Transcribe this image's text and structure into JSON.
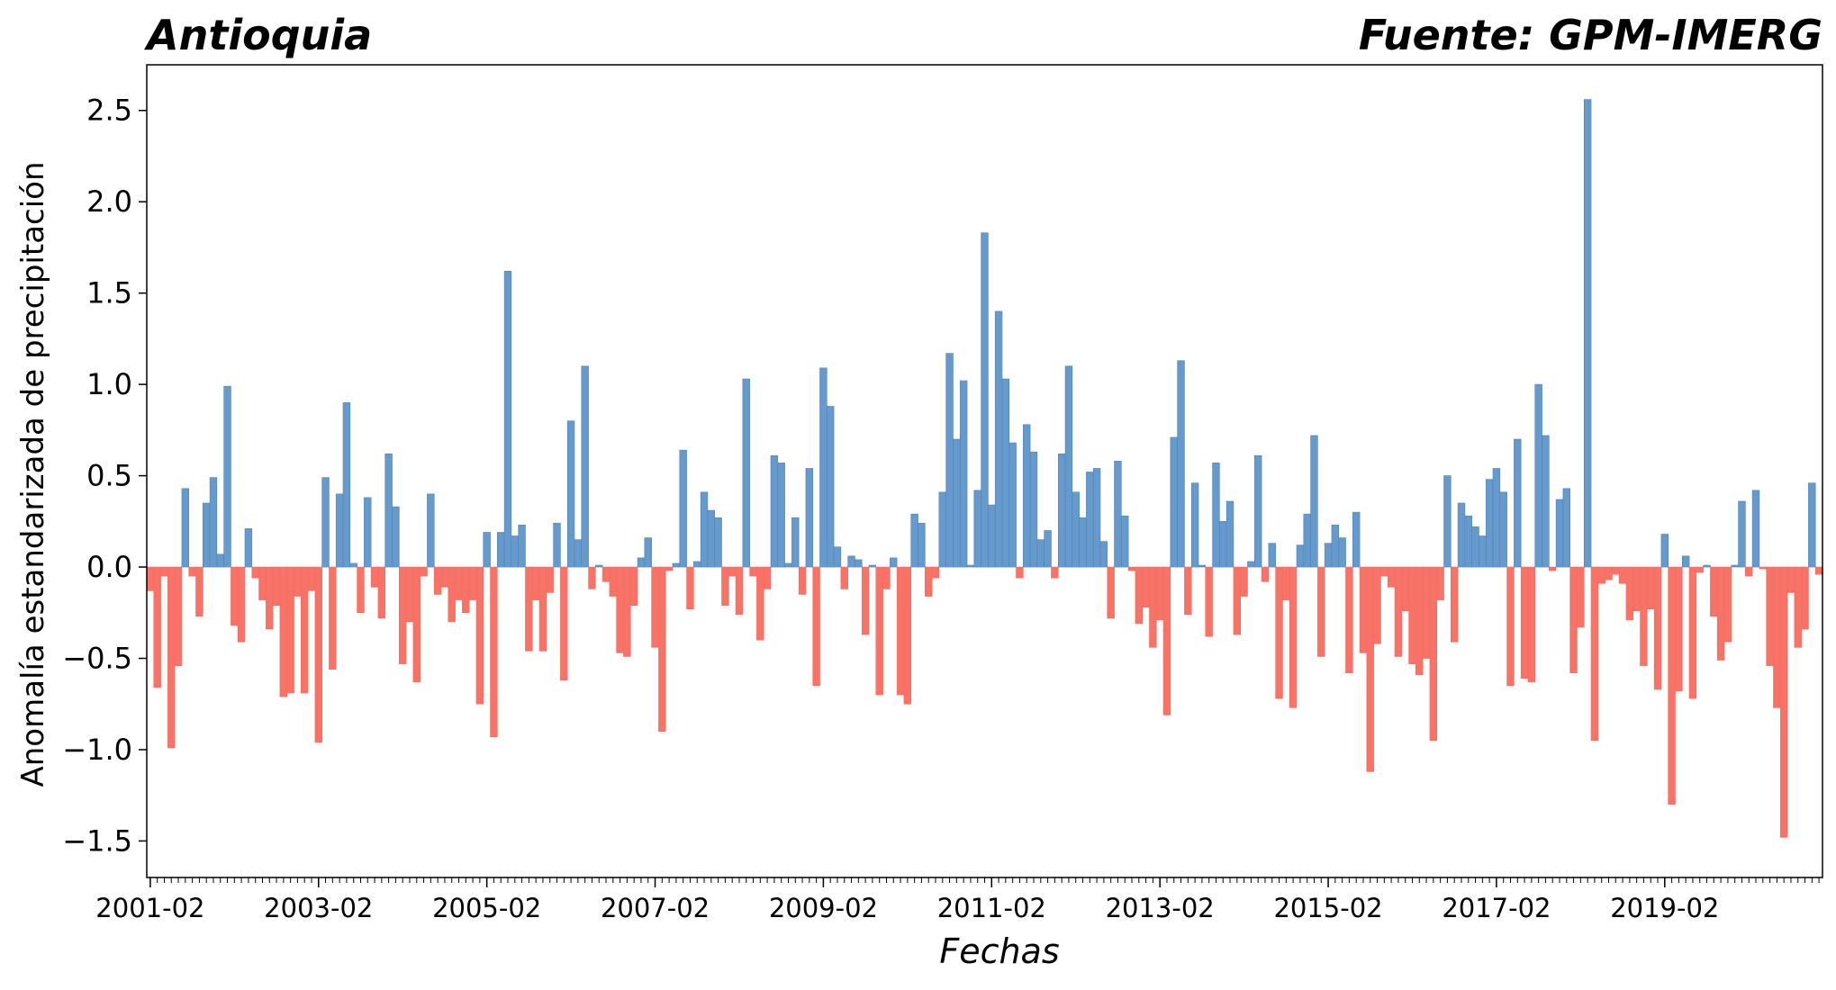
{
  "chart_data": {
    "type": "bar",
    "title_left": "Antioquia",
    "title_right": "Fuente: GPM-IMERG",
    "xlabel": "Fechas",
    "ylabel": "Anomalía estandarizada de precipitación",
    "ylim": [
      -1.7,
      2.75
    ],
    "yticks": [
      -1.5,
      -1.0,
      -0.5,
      0.0,
      0.5,
      1.0,
      1.5,
      2.0,
      2.5
    ],
    "ytick_labels": [
      "−1.5",
      "−1.0",
      "−0.5",
      "0.0",
      "0.5",
      "1.0",
      "1.5",
      "2.0",
      "2.5"
    ],
    "xtick_labels": [
      "2001-02",
      "2003-02",
      "2005-02",
      "2007-02",
      "2009-02",
      "2011-02",
      "2013-02",
      "2015-02",
      "2017-02",
      "2019-02"
    ],
    "start": "2001-02",
    "end": "2020-12",
    "colors": {
      "positive": "#6699cc",
      "negative": "#f77367"
    },
    "grid": false,
    "values": [
      -0.13,
      -0.66,
      -0.05,
      -0.99,
      -0.54,
      0.43,
      -0.05,
      -0.27,
      0.35,
      0.49,
      0.07,
      0.99,
      -0.32,
      -0.41,
      0.21,
      -0.06,
      -0.18,
      -0.34,
      -0.21,
      -0.71,
      -0.69,
      -0.16,
      -0.69,
      -0.13,
      -0.96,
      0.49,
      -0.56,
      0.4,
      0.9,
      0.02,
      -0.25,
      0.38,
      -0.11,
      -0.28,
      0.62,
      0.33,
      -0.53,
      -0.3,
      -0.63,
      -0.05,
      0.4,
      -0.15,
      -0.11,
      -0.3,
      -0.18,
      -0.25,
      -0.18,
      -0.75,
      0.19,
      -0.93,
      0.19,
      1.62,
      0.17,
      0.23,
      -0.46,
      -0.18,
      -0.46,
      -0.14,
      0.24,
      -0.62,
      0.8,
      0.15,
      1.1,
      -0.12,
      0.01,
      -0.08,
      -0.16,
      -0.47,
      -0.49,
      -0.21,
      0.05,
      0.16,
      -0.44,
      -0.9,
      -0.02,
      0.02,
      0.64,
      -0.23,
      0.03,
      0.41,
      0.31,
      0.27,
      -0.21,
      -0.05,
      -0.26,
      1.03,
      -0.05,
      -0.4,
      -0.12,
      0.61,
      0.57,
      0.02,
      0.27,
      -0.15,
      0.54,
      -0.65,
      1.09,
      0.88,
      0.11,
      -0.12,
      0.06,
      0.04,
      -0.37,
      0.01,
      -0.7,
      -0.12,
      0.05,
      -0.7,
      -0.75,
      0.29,
      0.24,
      -0.16,
      -0.06,
      0.41,
      1.17,
      0.7,
      1.02,
      0.01,
      0.42,
      1.83,
      0.34,
      1.4,
      1.03,
      0.68,
      -0.06,
      0.78,
      0.63,
      0.15,
      0.2,
      -0.06,
      0.62,
      1.1,
      0.41,
      0.27,
      0.52,
      0.54,
      0.14,
      -0.28,
      0.58,
      0.28,
      -0.02,
      -0.31,
      -0.22,
      -0.44,
      -0.29,
      -0.81,
      0.71,
      1.13,
      -0.26,
      0.46,
      0.01,
      -0.38,
      0.57,
      0.25,
      0.36,
      -0.37,
      -0.16,
      0.03,
      0.61,
      -0.08,
      0.13,
      -0.72,
      -0.18,
      -0.77,
      0.12,
      0.29,
      0.72,
      -0.49,
      0.13,
      0.23,
      0.16,
      -0.58,
      0.3,
      -0.47,
      -1.12,
      -0.42,
      -0.05,
      -0.11,
      -0.49,
      -0.24,
      -0.53,
      -0.59,
      -0.5,
      -0.95,
      -0.18,
      0.5,
      -0.41,
      0.35,
      0.28,
      0.22,
      0.17,
      0.48,
      0.54,
      0.41,
      -0.65,
      0.7,
      -0.61,
      -0.63,
      1.0,
      0.72,
      -0.02,
      0.37,
      0.43,
      -0.58,
      -0.33,
      2.56,
      -0.95,
      -0.09,
      -0.07,
      -0.04,
      -0.09,
      -0.29,
      -0.24,
      -0.54,
      -0.23,
      -0.67,
      0.18,
      -1.3,
      -0.68,
      0.06,
      -0.72,
      -0.03,
      0.01,
      -0.27,
      -0.51,
      -0.41,
      0.01,
      0.36,
      -0.05,
      0.42,
      -0.01,
      -0.54,
      -0.77,
      -1.48,
      -0.14,
      -0.44,
      -0.34,
      0.46,
      -0.04
    ]
  }
}
